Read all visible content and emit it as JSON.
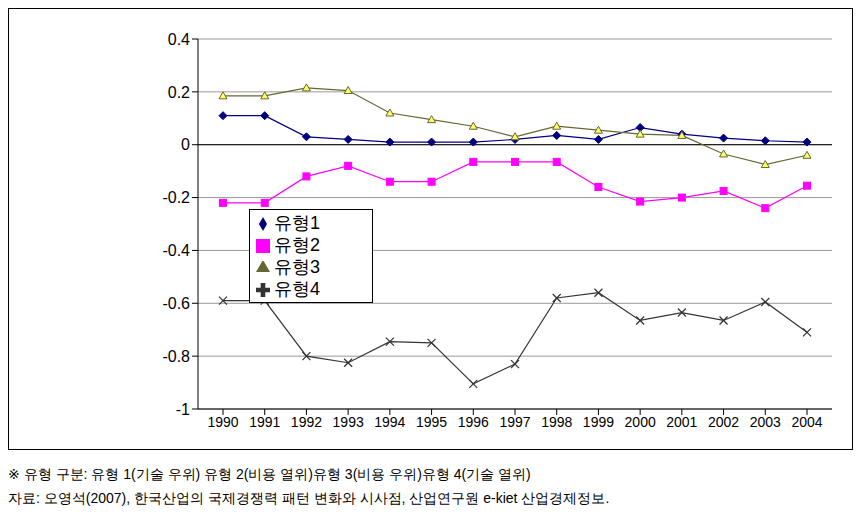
{
  "chart_data": {
    "type": "line",
    "categories": [
      "1990",
      "1991",
      "1992",
      "1993",
      "1994",
      "1995",
      "1996",
      "1997",
      "1998",
      "1999",
      "2000",
      "2001",
      "2002",
      "2003",
      "2004"
    ],
    "series": [
      {
        "name": "유형1",
        "color": "#000080",
        "marker": "diamond",
        "values": [
          0.11,
          0.11,
          0.03,
          0.02,
          0.01,
          0.01,
          0.01,
          0.02,
          0.035,
          0.02,
          0.065,
          0.04,
          0.025,
          0.015,
          0.01
        ]
      },
      {
        "name": "유형2",
        "color": "#FF00FF",
        "marker": "square",
        "values": [
          -0.22,
          -0.22,
          -0.12,
          -0.08,
          -0.14,
          -0.14,
          -0.065,
          -0.065,
          -0.065,
          -0.16,
          -0.215,
          -0.2,
          -0.175,
          -0.24,
          -0.155
        ]
      },
      {
        "name": "유형3",
        "color": "#666633",
        "marker": "triangle",
        "values": [
          0.185,
          0.185,
          0.215,
          0.205,
          0.12,
          0.095,
          0.07,
          0.03,
          0.07,
          0.055,
          0.04,
          0.035,
          -0.035,
          -0.075,
          -0.04
        ]
      },
      {
        "name": "유형4",
        "color": "#333333",
        "marker": "x",
        "values": [
          -0.59,
          -0.59,
          -0.8,
          -0.825,
          -0.745,
          -0.75,
          -0.905,
          -0.83,
          -0.58,
          -0.56,
          -0.665,
          -0.635,
          -0.665,
          -0.595,
          -0.71
        ]
      }
    ],
    "ylim": [
      -1,
      0.4
    ],
    "yticks": [
      -1,
      -0.8,
      -0.6,
      -0.4,
      -0.2,
      0,
      0.2,
      0.4
    ],
    "grid": true,
    "legend": "left",
    "notes": [
      "※ 유형 구분: 유형 1(기술 우위) 유형 2(비용 열위)유형 3(비용 우위)유형 4(기술 열위)",
      "자료: 오영석(2007), 한국산업의 국제경쟁력 패턴 변화와 시사점, 산업연구원 e-kiet 산업경제정보."
    ]
  }
}
